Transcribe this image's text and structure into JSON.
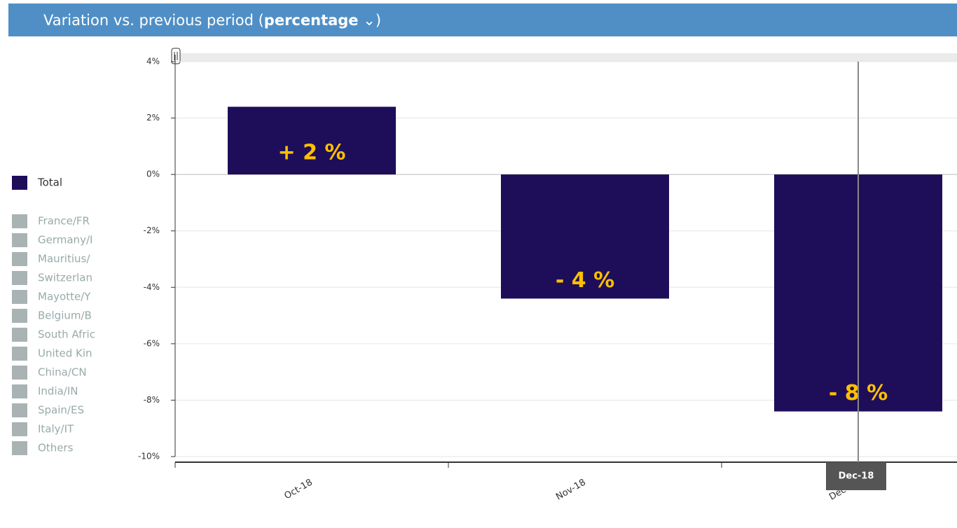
{
  "header": {
    "title": "Variation vs. previous period (",
    "mode": "percentage",
    "close": ")"
  },
  "chart_data": {
    "type": "bar",
    "categories": [
      "Oct-18",
      "Nov-18",
      "Dec-18"
    ],
    "series": [
      {
        "name": "Total",
        "color": "#1e0e5a",
        "values": [
          2.4,
          -4.4,
          -8.4
        ],
        "value_labels": [
          "+ 2 %",
          "- 4 %",
          "- 8 %"
        ]
      }
    ],
    "inactive_series": [
      {
        "name": "France/FR",
        "color": "#a9b3b3"
      },
      {
        "name": "Germany/I",
        "color": "#a9b3b3"
      },
      {
        "name": "Mauritius/",
        "color": "#a9b3b3"
      },
      {
        "name": "Switzerlan",
        "color": "#a9b3b3"
      },
      {
        "name": "Mayotte/Y",
        "color": "#a9b3b3"
      },
      {
        "name": "Belgium/B",
        "color": "#a9b3b3"
      },
      {
        "name": "South Afric",
        "color": "#a9b3b3"
      },
      {
        "name": "United Kin",
        "color": "#a9b3b3"
      },
      {
        "name": "China/CN",
        "color": "#a9b3b3"
      },
      {
        "name": "India/IN",
        "color": "#a9b3b3"
      },
      {
        "name": "Spain/ES",
        "color": "#a9b3b3"
      },
      {
        "name": "Italy/IT",
        "color": "#a9b3b3"
      },
      {
        "name": "Others",
        "color": "#a9b3b3"
      }
    ],
    "value_label_color": "#ffc000",
    "ylim": [
      -10,
      4
    ],
    "yticks": [
      {
        "value": 4,
        "label": "4%"
      },
      {
        "value": 2,
        "label": "2%"
      },
      {
        "value": 0,
        "label": "0%"
      },
      {
        "value": -2,
        "label": "-2%"
      },
      {
        "value": -4,
        "label": "-4%"
      },
      {
        "value": -6,
        "label": "-6%"
      },
      {
        "value": -8,
        "label": "-8%"
      },
      {
        "value": -10,
        "label": "-10%"
      }
    ],
    "grid": true,
    "legend": "left",
    "tooltip": "Dec-18"
  }
}
